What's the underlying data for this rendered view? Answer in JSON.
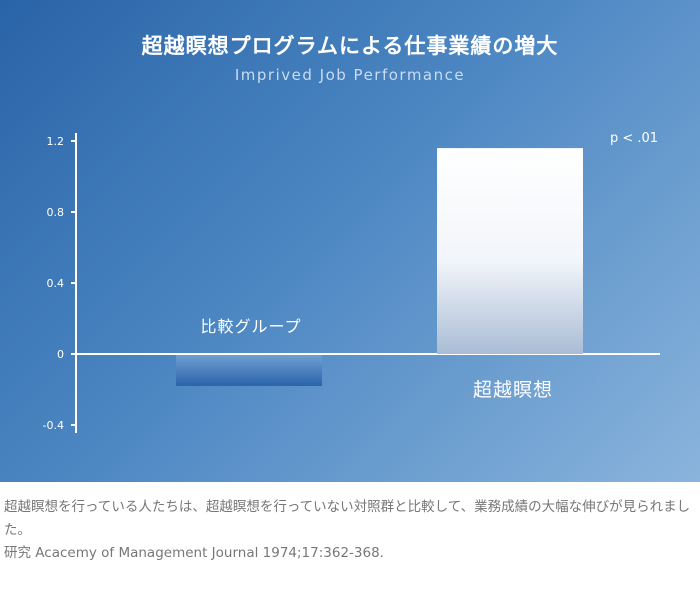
{
  "chart_data": {
    "type": "bar",
    "title": "超越瞑想プログラムによる仕事業績の増大",
    "subtitle": "Imprived Job Performance",
    "categories": [
      "比較グループ",
      "超越瞑想"
    ],
    "values": [
      -0.18,
      1.16
    ],
    "ylim": [
      -0.4,
      1.2
    ],
    "yticks": [
      "1.2",
      "0.8",
      "0.4",
      "0",
      "-0.4"
    ],
    "annotation": "p < .01",
    "grid": false
  },
  "caption": {
    "text": "超越瞑想を行っている人たちは、超越瞑想を行っていない対照群と比較して、業務成績の大幅な伸びが見られました。",
    "citation": "研究 Acacemy of Management Journal 1974;17:362-368."
  }
}
